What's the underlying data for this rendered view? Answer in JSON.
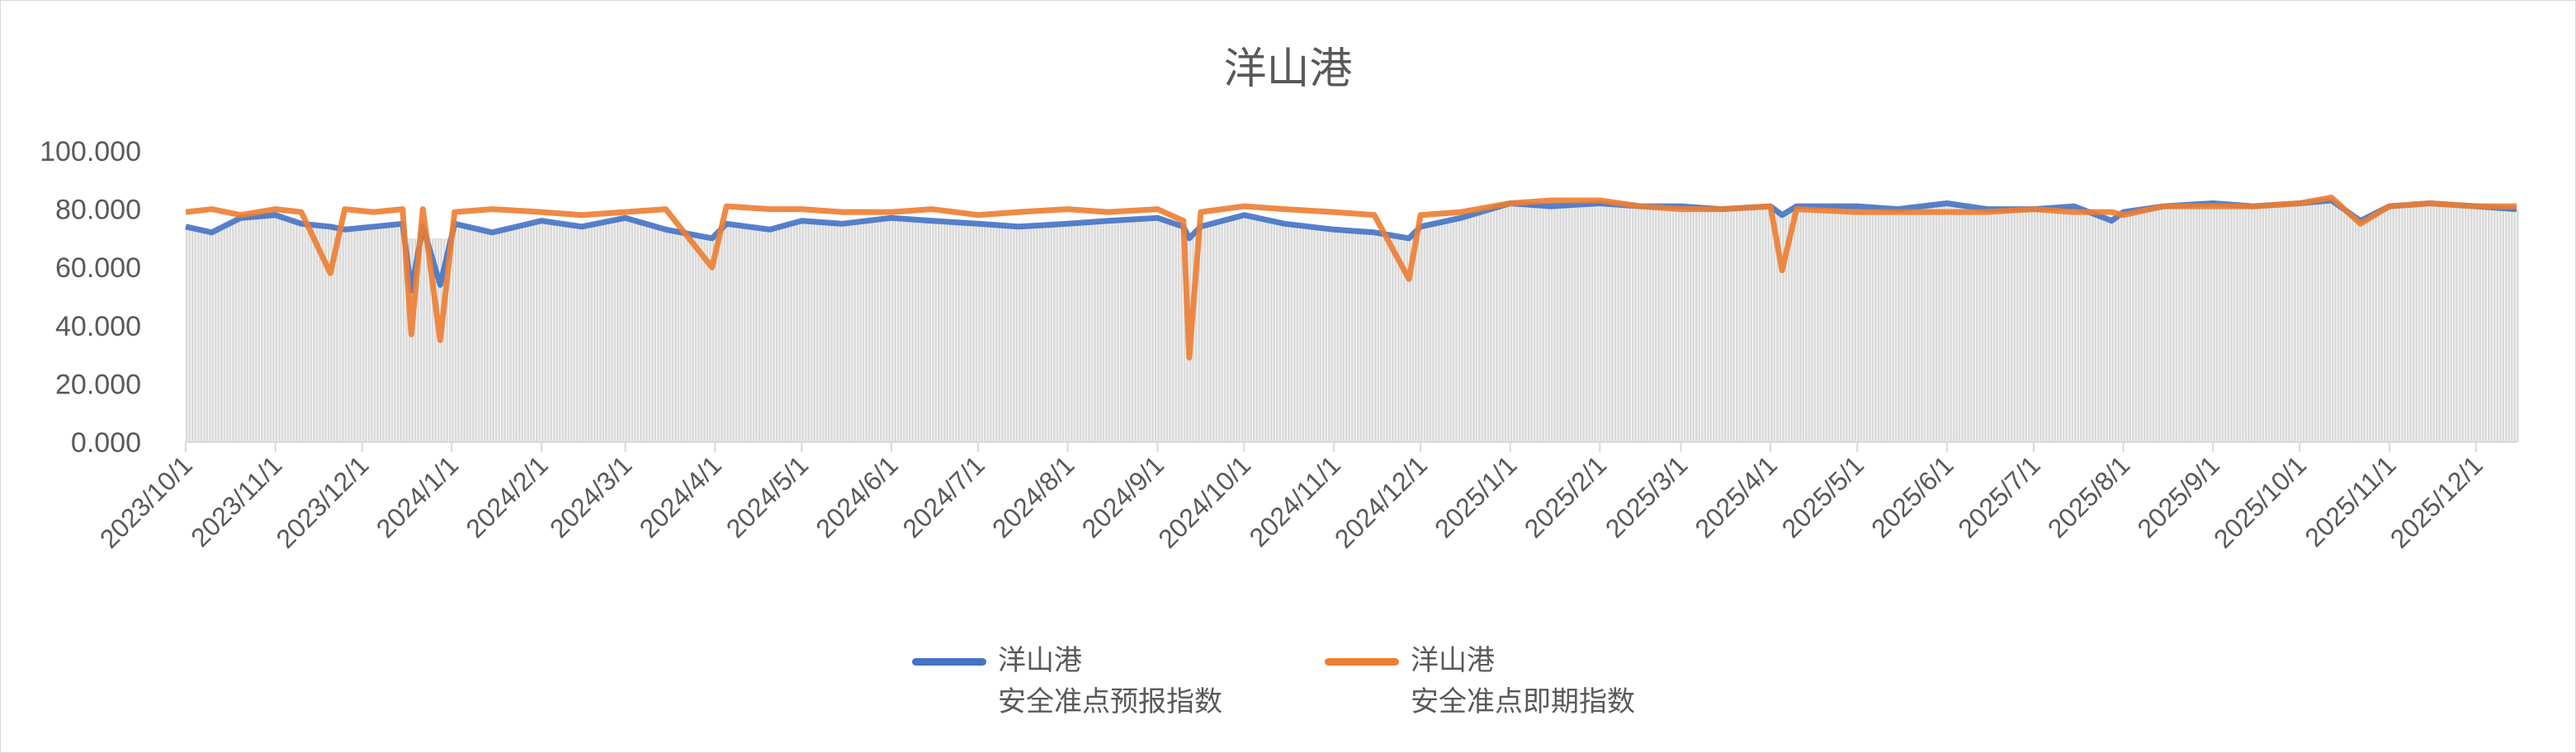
{
  "chart_data": {
    "type": "line",
    "title": "洋山港",
    "ylim": [
      0,
      100
    ],
    "yticks": [
      "0.000",
      "20.000",
      "40.000",
      "60.000",
      "80.000",
      "100.000"
    ],
    "xticks": [
      "2023/10/1",
      "2023/11/1",
      "2023/12/1",
      "2024/1/1",
      "2024/2/1",
      "2024/3/1",
      "2024/4/1",
      "2024/5/1",
      "2024/6/1",
      "2024/7/1",
      "2024/8/1",
      "2024/9/1",
      "2024/10/1",
      "2024/11/1",
      "2024/12/1",
      "2025/1/1",
      "2025/2/1",
      "2025/3/1",
      "2025/4/1",
      "2025/5/1",
      "2025/6/1",
      "2025/7/1",
      "2025/8/1",
      "2025/9/1",
      "2025/10/1",
      "2025/11/1",
      "2025/12/1"
    ],
    "xlim": [
      "2023-10-01",
      "2025-12-15"
    ],
    "legend_position": "bottom",
    "colors": {
      "forecast": "#4472c4",
      "immediate": "#ed7d31",
      "bars": "#d9d9d9"
    },
    "x": [
      "2023-10-01",
      "2023-10-10",
      "2023-10-20",
      "2023-11-01",
      "2023-11-10",
      "2023-11-20",
      "2023-11-25",
      "2023-12-05",
      "2023-12-15",
      "2023-12-18",
      "2023-12-22",
      "2023-12-28",
      "2024-01-02",
      "2024-01-15",
      "2024-02-01",
      "2024-02-15",
      "2024-03-01",
      "2024-03-15",
      "2024-03-31",
      "2024-04-05",
      "2024-04-20",
      "2024-05-01",
      "2024-05-15",
      "2024-06-01",
      "2024-06-15",
      "2024-07-01",
      "2024-07-15",
      "2024-08-01",
      "2024-08-15",
      "2024-09-01",
      "2024-09-10",
      "2024-09-12",
      "2024-09-16",
      "2024-10-01",
      "2024-10-15",
      "2024-11-01",
      "2024-11-15",
      "2024-11-27",
      "2024-12-01",
      "2024-12-15",
      "2025-01-01",
      "2025-01-15",
      "2025-02-01",
      "2025-02-15",
      "2025-03-01",
      "2025-03-15",
      "2025-04-01",
      "2025-04-05",
      "2025-04-10",
      "2025-05-01",
      "2025-05-15",
      "2025-06-01",
      "2025-06-15",
      "2025-07-01",
      "2025-07-15",
      "2025-07-28",
      "2025-08-01",
      "2025-08-15",
      "2025-09-01",
      "2025-09-15",
      "2025-10-01",
      "2025-10-12",
      "2025-10-22",
      "2025-11-01",
      "2025-11-15",
      "2025-12-01",
      "2025-12-15"
    ],
    "series": [
      {
        "name": "洋山港\n安全准点预报指数",
        "name_line1": "洋山港",
        "name_line2": "安全准点预报指数",
        "color": "#4472c4",
        "values": [
          74,
          72,
          77,
          78,
          75,
          74,
          73,
          74,
          75,
          52,
          74,
          54,
          75,
          72,
          76,
          74,
          77,
          73,
          70,
          75,
          73,
          76,
          75,
          77,
          76,
          75,
          74,
          75,
          76,
          77,
          74,
          70,
          74,
          78,
          75,
          73,
          72,
          70,
          74,
          77,
          82,
          81,
          82,
          81,
          81,
          80,
          81,
          78,
          81,
          81,
          80,
          82,
          80,
          80,
          81,
          76,
          79,
          81,
          82,
          81,
          82,
          83,
          76,
          81,
          82,
          81,
          80
        ]
      },
      {
        "name": "洋山港\n安全准点即期指数",
        "name_line1": "洋山港",
        "name_line2": "安全准点即期指数",
        "color": "#ed7d31",
        "values": [
          79,
          80,
          78,
          80,
          79,
          58,
          80,
          79,
          80,
          37,
          80,
          35,
          79,
          80,
          79,
          78,
          79,
          80,
          60,
          81,
          80,
          80,
          79,
          79,
          80,
          78,
          79,
          80,
          79,
          80,
          76,
          29,
          79,
          81,
          80,
          79,
          78,
          56,
          78,
          79,
          82,
          83,
          83,
          81,
          80,
          80,
          81,
          59,
          80,
          79,
          79,
          79,
          79,
          80,
          79,
          79,
          78,
          81,
          81,
          81,
          82,
          84,
          75,
          81,
          82,
          81,
          81
        ]
      }
    ]
  }
}
